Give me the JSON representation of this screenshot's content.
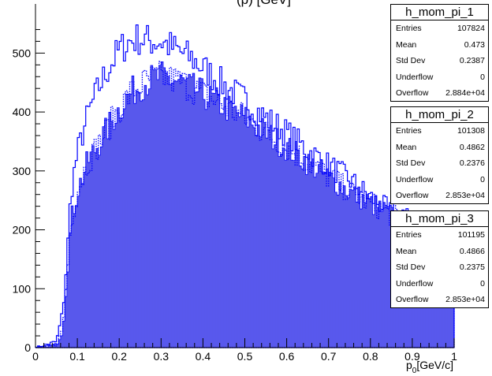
{
  "window": {
    "title_fragment": "(p) [GeV]"
  },
  "chart_data": {
    "type": "histogram",
    "xlabel": "p_{0} [GeV/c]",
    "xlabel_main": "p",
    "xlabel_sub": "0",
    "xlabel_unit": "[GeV/c]",
    "ylabel": "",
    "xlim": [
      0,
      1
    ],
    "ylim": [
      0,
      550
    ],
    "x_ticks": [
      0,
      0.1,
      0.2,
      0.3,
      0.4,
      0.5,
      0.6,
      0.7,
      0.8,
      0.9,
      1
    ],
    "x_tick_labels": [
      "0",
      "0.1",
      "0.2",
      "0.3",
      "0.4",
      "0.5",
      "0.6",
      "0.7",
      "0.8",
      "0.9",
      "1"
    ],
    "y_ticks": [
      0,
      100,
      200,
      300,
      400,
      500
    ],
    "y_tick_labels": [
      "0",
      "100",
      "200",
      "300",
      "400",
      "500"
    ],
    "colors": {
      "h_mom_pi_1": "#0000ff",
      "h_mom_pi_2": "#0000ff",
      "h_mom_pi_3": "#0000ff",
      "fill": "#5a5aee"
    },
    "bin_width": 0.005,
    "series": [
      {
        "name": "h_mom_pi_1",
        "style": "line",
        "x": [
          0.025,
          0.05,
          0.065,
          0.075,
          0.085,
          0.1,
          0.125,
          0.15,
          0.175,
          0.2,
          0.225,
          0.25,
          0.275,
          0.3,
          0.325,
          0.35,
          0.375,
          0.4,
          0.45,
          0.5,
          0.55,
          0.6,
          0.65,
          0.7,
          0.75,
          0.8,
          0.85,
          0.9,
          0.95,
          0.995
        ],
        "values": [
          5,
          10,
          60,
          150,
          265,
          330,
          395,
          440,
          475,
          505,
          520,
          525,
          520,
          520,
          510,
          500,
          490,
          475,
          445,
          420,
          390,
          365,
          335,
          310,
          285,
          255,
          230,
          215,
          205,
          195
        ]
      },
      {
        "name": "h_mom_pi_2",
        "style": "filled",
        "x": [
          0.025,
          0.05,
          0.065,
          0.075,
          0.085,
          0.1,
          0.125,
          0.15,
          0.175,
          0.2,
          0.225,
          0.25,
          0.275,
          0.3,
          0.325,
          0.35,
          0.375,
          0.4,
          0.45,
          0.5,
          0.55,
          0.6,
          0.65,
          0.7,
          0.75,
          0.8,
          0.85,
          0.9,
          0.95,
          0.995
        ],
        "values": [
          2,
          5,
          30,
          120,
          215,
          265,
          315,
          345,
          375,
          405,
          430,
          445,
          455,
          460,
          455,
          450,
          440,
          430,
          410,
          390,
          365,
          340,
          315,
          290,
          265,
          245,
          225,
          210,
          200,
          190
        ]
      },
      {
        "name": "h_mom_pi_3",
        "style": "dotted",
        "x": [
          0.025,
          0.05,
          0.065,
          0.075,
          0.085,
          0.1,
          0.125,
          0.15,
          0.175,
          0.2,
          0.225,
          0.25,
          0.275,
          0.3,
          0.325,
          0.35,
          0.375,
          0.4,
          0.45,
          0.5,
          0.55,
          0.6,
          0.65,
          0.7,
          0.75,
          0.8,
          0.85,
          0.9,
          0.95,
          0.995
        ],
        "values": [
          2,
          5,
          30,
          120,
          215,
          265,
          315,
          345,
          375,
          405,
          430,
          445,
          455,
          460,
          455,
          450,
          440,
          430,
          410,
          390,
          365,
          340,
          315,
          290,
          265,
          245,
          225,
          210,
          200,
          190
        ]
      }
    ]
  },
  "stats_boxes": [
    {
      "title": "h_mom_pi_1",
      "rows": [
        {
          "label": "Entries",
          "value": "107824"
        },
        {
          "label": "Mean",
          "value": "0.473"
        },
        {
          "label": "Std Dev",
          "value": "0.2387"
        },
        {
          "label": "Underflow",
          "value": "0"
        },
        {
          "label": "Overflow",
          "value": "2.884e+04"
        }
      ]
    },
    {
      "title": "h_mom_pi_2",
      "rows": [
        {
          "label": "Entries",
          "value": "101308"
        },
        {
          "label": "Mean",
          "value": "0.4862"
        },
        {
          "label": "Std Dev",
          "value": "0.2376"
        },
        {
          "label": "Underflow",
          "value": "0"
        },
        {
          "label": "Overflow",
          "value": "2.853e+04"
        }
      ]
    },
    {
      "title": "h_mom_pi_3",
      "rows": [
        {
          "label": "Entries",
          "value": "101195"
        },
        {
          "label": "Mean",
          "value": "0.4866"
        },
        {
          "label": "Std Dev",
          "value": "0.2375"
        },
        {
          "label": "Underflow",
          "value": "0"
        },
        {
          "label": "Overflow",
          "value": "2.853e+04"
        }
      ]
    }
  ]
}
